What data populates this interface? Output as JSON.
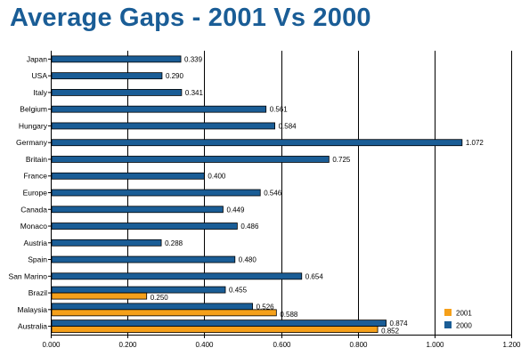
{
  "chart_data": {
    "type": "bar",
    "orientation": "horizontal",
    "title": "Average Gaps - 2001 Vs 2000",
    "xlabel": "",
    "ylabel": "",
    "xlim": [
      0,
      1.2
    ],
    "x_ticks": [
      "0.000",
      "0.200",
      "0.400",
      "0.600",
      "0.800",
      "1.000",
      "1.200"
    ],
    "grid": "vertical",
    "legend_position": "bottom-right",
    "categories": [
      "Japan",
      "USA",
      "Italy",
      "Belgium",
      "Hungary",
      "Germany",
      "Britain",
      "France",
      "Europe",
      "Canada",
      "Monaco",
      "Austria",
      "Spain",
      "San Marino",
      "Brazil",
      "Malaysia",
      "Australia"
    ],
    "series": [
      {
        "name": "2000",
        "color": "#1a5d96",
        "values": [
          0.339,
          0.29,
          0.341,
          0.561,
          0.584,
          1.072,
          0.725,
          0.4,
          0.546,
          0.449,
          0.486,
          0.288,
          0.48,
          0.654,
          0.455,
          0.526,
          0.874
        ],
        "labels": [
          "0.339",
          "0.290",
          "0.341",
          "0.561",
          "0.584",
          "1.072",
          "0.725",
          "0.400",
          "0.546",
          "0.449",
          "0.486",
          "0.288",
          "0.480",
          "0.654",
          "0.455",
          "0.526",
          "0.874"
        ]
      },
      {
        "name": "2001",
        "color": "#f5a01a",
        "values": [
          null,
          null,
          null,
          null,
          null,
          null,
          null,
          null,
          null,
          null,
          null,
          null,
          null,
          null,
          0.25,
          0.588,
          0.852
        ],
        "labels": [
          null,
          null,
          null,
          null,
          null,
          null,
          null,
          null,
          null,
          null,
          null,
          null,
          null,
          null,
          "0.250",
          "0.588",
          "0.852"
        ]
      }
    ]
  }
}
